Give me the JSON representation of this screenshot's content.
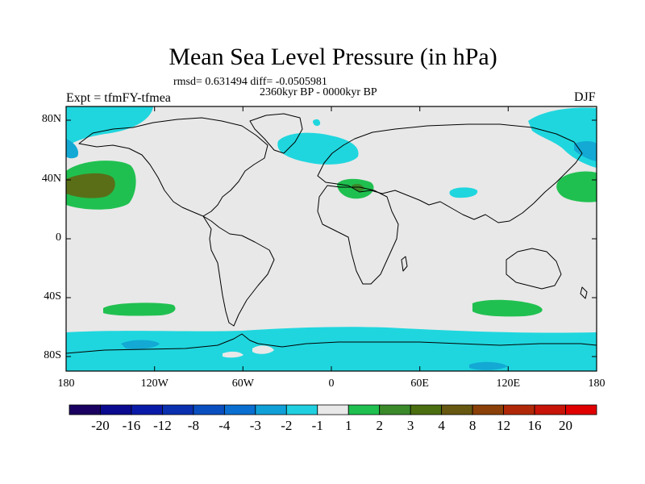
{
  "title": "Mean Sea Level Pressure (in hPa)",
  "stats": "rmsd= 0.631494 diff= -0.0505981",
  "period": "2360kyr BP - 0000kyr BP",
  "experiment": "Expt = tfmFY-tfmea",
  "season": "DJF",
  "lat_labels": [
    "80N",
    "40N",
    "0",
    "40S",
    "80S"
  ],
  "lon_labels": [
    "180",
    "120W",
    "60W",
    "0",
    "60E",
    "120E",
    "180"
  ],
  "colorbar": {
    "labels": [
      "-20",
      "-16",
      "-12",
      "-8",
      "-4",
      "-3",
      "-2",
      "-1",
      "1",
      "2",
      "3",
      "4",
      "8",
      "12",
      "16",
      "20"
    ],
    "colors": [
      "#1a0060",
      "#0a0a90",
      "#0a1aa8",
      "#0a30b0",
      "#0a4fc0",
      "#0a6fd0",
      "#10a0d8",
      "#20d0e0",
      "#e8e8e8",
      "#20c050",
      "#3a8a2a",
      "#4a6e10",
      "#665810",
      "#8a4008",
      "#b02808",
      "#c81408",
      "#e00000"
    ]
  },
  "colors": {
    "land_bg": "#e8e8e8",
    "cyan": "#1fd6de",
    "cyan_dark": "#13a9d4",
    "green": "#20c050",
    "green_dark": "#3a8a2a",
    "green_darker": "#5a6e18",
    "coast": "#000000"
  }
}
